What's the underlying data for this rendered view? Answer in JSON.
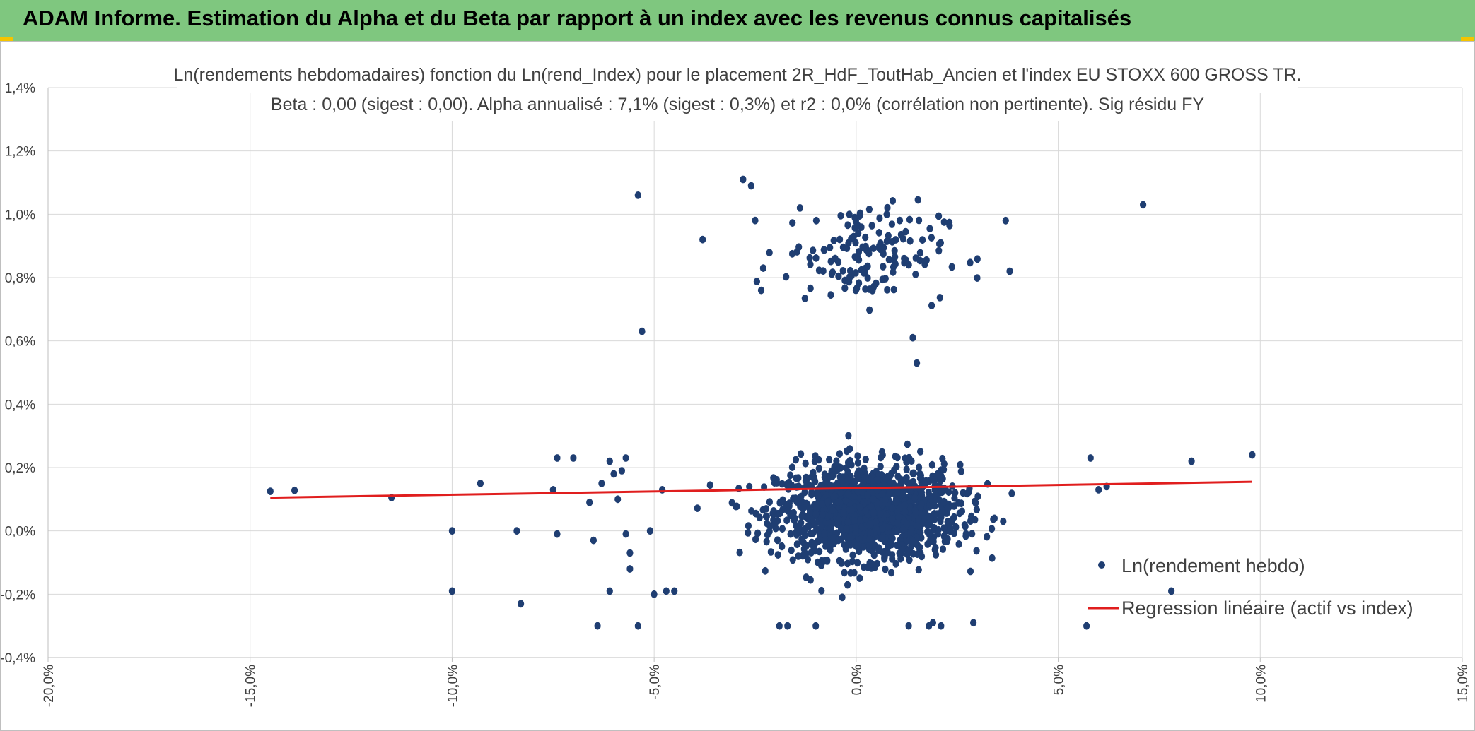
{
  "header": {
    "title": "ADAM Informe. Estimation du Alpha et du Beta par rapport à un index avec les revenus connus capitalisés"
  },
  "colors": {
    "banner": "#7fc77f",
    "points": "#1f3e72",
    "regression": "#e01e1e",
    "grid": "#d9d9d9"
  },
  "chart_data": {
    "type": "scatter",
    "title": "Ln(rendements hebdomadaires) fonction du Ln(rend_Index) pour le placement 2R_HdF_ToutHab_Ancien et l'index EU STOXX 600 GROSS TR.",
    "subtitle": "Beta : 0,00 (sigest : 0,00). Alpha annualisé : 7,1% (sigest : 0,3%) et r2 : 0,0% (corrélation non pertinente). Sig résidu FY",
    "xlim": [
      -0.2,
      0.15
    ],
    "ylim": [
      -0.004,
      0.014
    ],
    "x_ticks": [
      "-20,0%",
      "-15,0%",
      "-10,0%",
      "-5,0%",
      "0,0%",
      "5,0%",
      "10,0%",
      "15,0%"
    ],
    "y_ticks": [
      "-0,4%",
      "-0,2%",
      "0,0%",
      "0,2%",
      "0,4%",
      "0,6%",
      "0,8%",
      "1,0%",
      "1,2%",
      "1,4%"
    ],
    "grid": true,
    "legend_placement": "right",
    "series": [
      {
        "name": "Ln(rendement hebdo)",
        "kind": "scatter",
        "points_explicit": [
          [
            -0.145,
            0.00125
          ],
          [
            -0.139,
            0.00128
          ],
          [
            -0.115,
            0.00105
          ],
          [
            -0.1,
            0.0
          ],
          [
            -0.1,
            -0.0019
          ],
          [
            -0.093,
            0.0015
          ],
          [
            -0.084,
            0.0
          ],
          [
            -0.083,
            -0.0023
          ],
          [
            -0.075,
            0.0013
          ],
          [
            -0.074,
            -0.0001
          ],
          [
            -0.074,
            0.0023
          ],
          [
            -0.07,
            0.0023
          ],
          [
            -0.066,
            0.0009
          ],
          [
            -0.065,
            -0.0003
          ],
          [
            -0.064,
            -0.003
          ],
          [
            -0.063,
            0.0015
          ],
          [
            -0.061,
            -0.0019
          ],
          [
            -0.061,
            0.0022
          ],
          [
            -0.06,
            0.0018
          ],
          [
            -0.059,
            0.001
          ],
          [
            -0.058,
            0.0019
          ],
          [
            -0.057,
            0.0023
          ],
          [
            -0.057,
            -0.0001
          ],
          [
            -0.056,
            -0.0012
          ],
          [
            -0.056,
            -0.0007
          ],
          [
            -0.054,
            0.0106
          ],
          [
            -0.054,
            -0.003
          ],
          [
            -0.053,
            0.0063
          ],
          [
            -0.051,
            0.0
          ],
          [
            -0.05,
            -0.002
          ],
          [
            -0.048,
            0.0013
          ],
          [
            -0.047,
            -0.0019
          ],
          [
            -0.045,
            -0.0019
          ],
          [
            -0.038,
            0.0092
          ],
          [
            -0.028,
            0.0111
          ],
          [
            -0.026,
            0.0109
          ],
          [
            -0.023,
            0.0083
          ],
          [
            -0.019,
            -0.003
          ],
          [
            -0.017,
            -0.003
          ],
          [
            -0.01,
            -0.003
          ],
          [
            0.013,
            -0.003
          ],
          [
            0.018,
            -0.003
          ],
          [
            0.021,
            -0.003
          ],
          [
            0.019,
            -0.0029
          ],
          [
            0.029,
            -0.0029
          ],
          [
            0.057,
            -0.003
          ],
          [
            0.058,
            0.0023
          ],
          [
            0.06,
            0.0013
          ],
          [
            0.062,
            0.0014
          ],
          [
            0.071,
            0.0103
          ],
          [
            0.078,
            -0.0019
          ],
          [
            0.083,
            0.0022
          ],
          [
            0.098,
            0.0024
          ],
          [
            0.037,
            0.0098
          ],
          [
            0.038,
            0.0082
          ],
          [
            0.015,
            0.0053
          ],
          [
            0.014,
            0.0061
          ]
        ],
        "cluster_upper": {
          "x_center": 0.002,
          "x_spread": 0.014,
          "y_center": 0.0088,
          "y_spread": 0.0011,
          "count": 150
        },
        "cluster_lower": {
          "x_center": 0.003,
          "x_spread": 0.018,
          "y_center": 0.0006,
          "y_spread": 0.0011,
          "count": 1400
        },
        "y_floor_main": -0.0021,
        "y_ceiling_main": 0.0035
      },
      {
        "name": "Regression linéaire (actif vs index)",
        "kind": "line",
        "x": [
          -0.145,
          0.098
        ],
        "y": [
          0.00105,
          0.00155
        ]
      }
    ]
  }
}
